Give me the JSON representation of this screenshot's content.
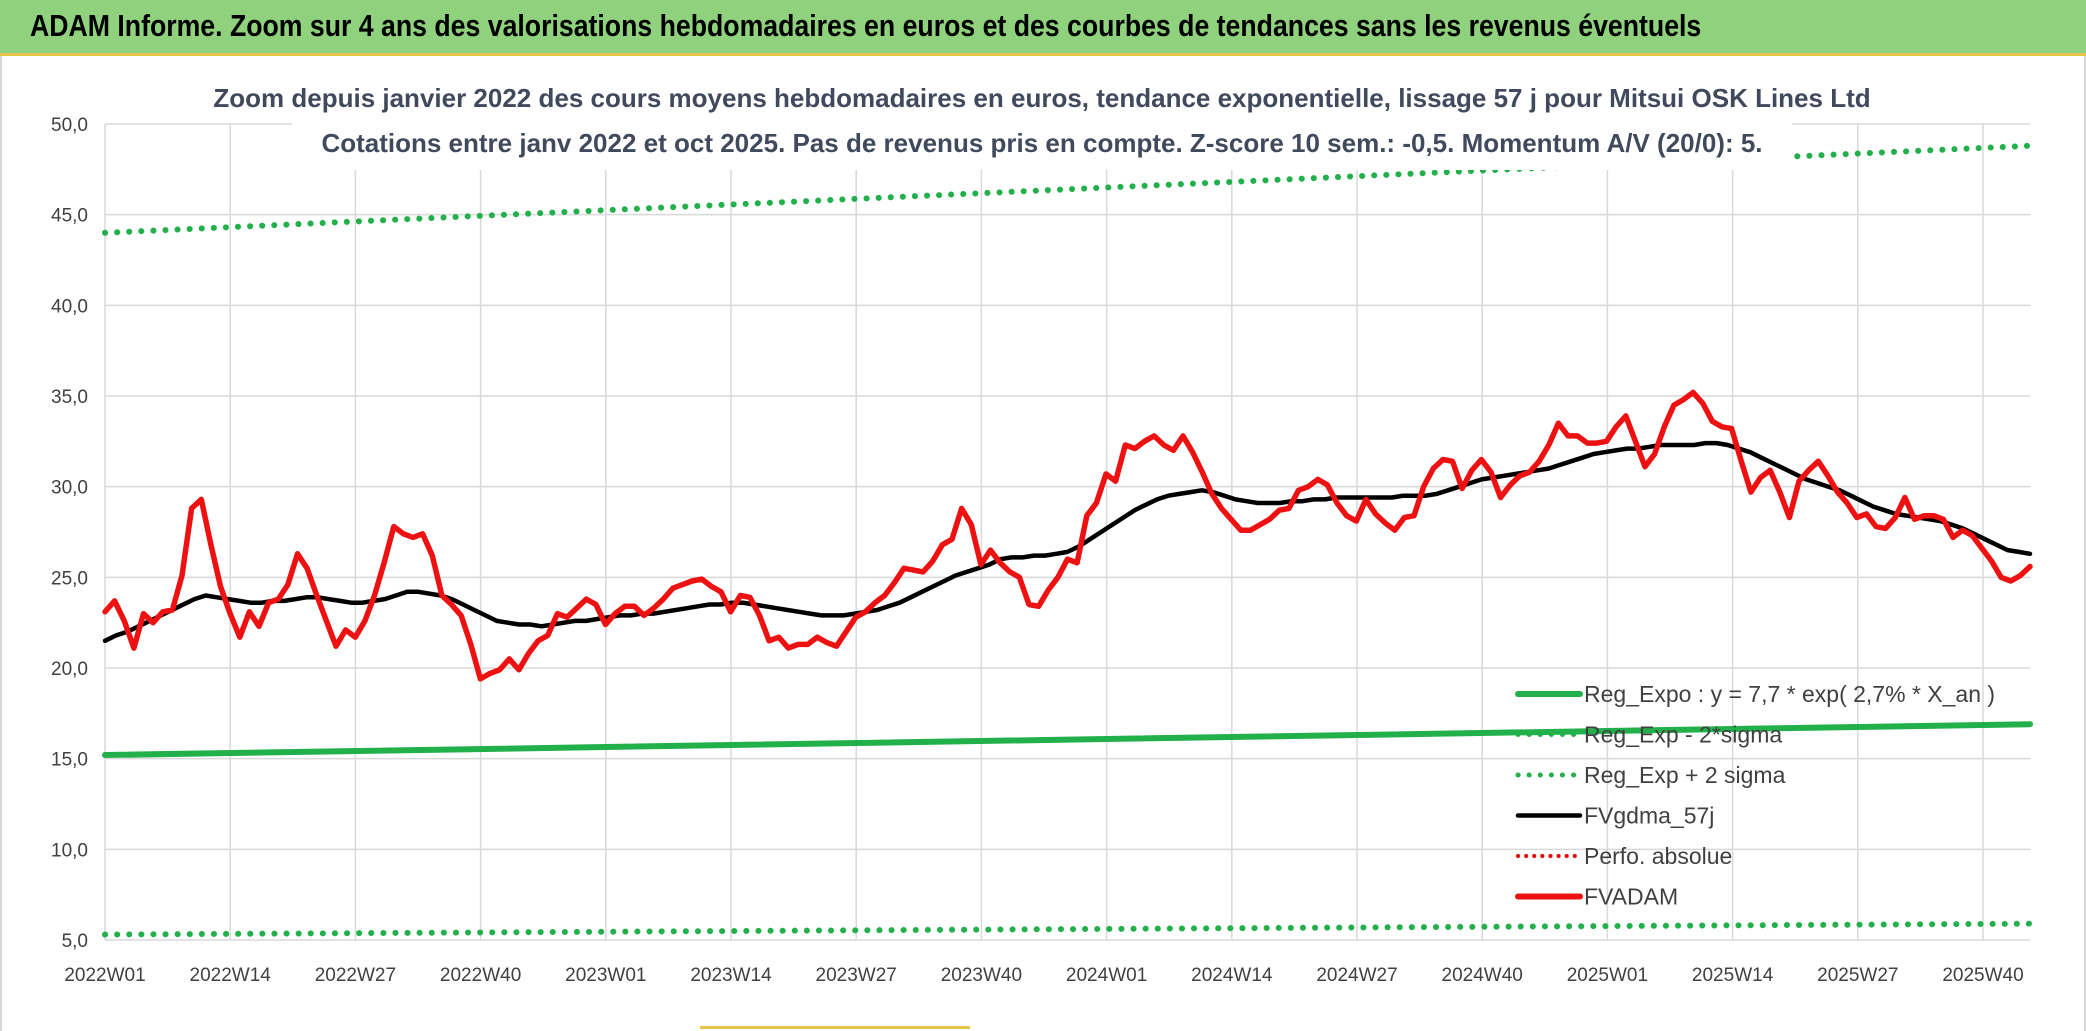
{
  "banner": {
    "title": "ADAM Informe. Zoom sur 4 ans des valorisations hebdomadaires en euros et des courbes de tendances sans les revenus éventuels"
  },
  "colors": {
    "reg_expo": "#22b04a",
    "sigma": "#22b04a",
    "fvgdma": "#000000",
    "perfo": "#e00000",
    "fvadam": "#ee1111",
    "banner": "#8fd17c"
  },
  "chart_data": {
    "type": "line",
    "title_line1": "Zoom depuis janvier 2022 des cours moyens hebdomadaires en euros, tendance exponentielle, lissage 57 j pour Mitsui OSK Lines Ltd",
    "title_line2": "Cotations entre janv 2022 et oct 2025. Pas de revenus pris en compte. Z-score 10 sem.: -0,5. Momentum A/V (20/0): 5.",
    "ylim": [
      5,
      50
    ],
    "yticks": [
      "5,0",
      "10,0",
      "15,0",
      "20,0",
      "25,0",
      "30,0",
      "35,0",
      "40,0",
      "45,0",
      "50,0"
    ],
    "xticks": [
      "2022W01",
      "2022W14",
      "2022W27",
      "2022W40",
      "2023W01",
      "2023W14",
      "2023W27",
      "2023W40",
      "2024W01",
      "2024W14",
      "2024W27",
      "2024W40",
      "2025W01",
      "2025W14",
      "2025W27",
      "2025W40"
    ],
    "legend": [
      {
        "name": "Reg_Expo : y = 7,7 * exp( 2,7% *  X_an )",
        "key": "reg_expo",
        "style": "solid"
      },
      {
        "name": "Reg_Exp - 2*sigma",
        "key": "sigma_low",
        "style": "dotted"
      },
      {
        "name": "Reg_Exp + 2 sigma",
        "key": "sigma_high",
        "style": "dotted"
      },
      {
        "name": "FVgdma_57j",
        "key": "fvgdma",
        "style": "solid"
      },
      {
        "name": "Perfo. absolue",
        "key": "perfo",
        "style": "dotted"
      },
      {
        "name": "FVADAM",
        "key": "fvadam",
        "style": "solid"
      }
    ],
    "series": [
      {
        "name": "Reg_Expo",
        "start": 15.2,
        "end": 16.9
      },
      {
        "name": "Reg_Exp - 2*sigma",
        "start": 5.3,
        "end": 5.9
      },
      {
        "name": "Reg_Exp + 2 sigma",
        "start": 44.0,
        "end": 48.8
      },
      {
        "name": "FVgdma_57j",
        "values": [
          21.5,
          21.8,
          22.0,
          22.3,
          22.6,
          22.9,
          23.2,
          23.5,
          23.8,
          24.0,
          23.9,
          23.8,
          23.7,
          23.6,
          23.6,
          23.7,
          23.7,
          23.8,
          23.9,
          23.9,
          23.8,
          23.7,
          23.6,
          23.6,
          23.7,
          23.8,
          24.0,
          24.2,
          24.2,
          24.1,
          24.0,
          23.8,
          23.5,
          23.2,
          22.9,
          22.6,
          22.5,
          22.4,
          22.4,
          22.3,
          22.4,
          22.5,
          22.6,
          22.6,
          22.7,
          22.8,
          22.9,
          22.9,
          23.0,
          23.0,
          23.1,
          23.2,
          23.3,
          23.4,
          23.5,
          23.5,
          23.6,
          23.6,
          23.5,
          23.4,
          23.3,
          23.2,
          23.1,
          23.0,
          22.9,
          22.9,
          22.9,
          23.0,
          23.1,
          23.2,
          23.4,
          23.6,
          23.9,
          24.2,
          24.5,
          24.8,
          25.1,
          25.3,
          25.5,
          25.7,
          26.0,
          26.1,
          26.1,
          26.2,
          26.2,
          26.3,
          26.4,
          26.7,
          27.1,
          27.5,
          27.9,
          28.3,
          28.7,
          29.0,
          29.3,
          29.5,
          29.6,
          29.7,
          29.8,
          29.7,
          29.5,
          29.3,
          29.2,
          29.1,
          29.1,
          29.1,
          29.2,
          29.2,
          29.3,
          29.3,
          29.4,
          29.4,
          29.4,
          29.4,
          29.4,
          29.4,
          29.5,
          29.5,
          29.5,
          29.6,
          29.8,
          30.0,
          30.2,
          30.4,
          30.5,
          30.6,
          30.7,
          30.8,
          30.9,
          31.0,
          31.2,
          31.4,
          31.6,
          31.8,
          31.9,
          32.0,
          32.1,
          32.1,
          32.2,
          32.3,
          32.3,
          32.3,
          32.3,
          32.4,
          32.4,
          32.3,
          32.1,
          31.9,
          31.6,
          31.3,
          31.0,
          30.7,
          30.4,
          30.2,
          30.0,
          29.8,
          29.5,
          29.2,
          28.9,
          28.7,
          28.5,
          28.4,
          28.3,
          28.2,
          28.1,
          27.9,
          27.7,
          27.4,
          27.1,
          26.8,
          26.5,
          26.4,
          26.3
        ]
      },
      {
        "name": "FVADAM",
        "values": [
          23.1,
          23.7,
          22.6,
          21.1,
          23.0,
          22.5,
          23.1,
          23.2,
          25.1,
          28.8,
          29.3,
          26.8,
          24.5,
          23.0,
          21.7,
          23.1,
          22.3,
          23.6,
          23.8,
          24.6,
          26.3,
          25.5,
          24.0,
          22.6,
          21.2,
          22.1,
          21.7,
          22.6,
          24.0,
          25.8,
          27.8,
          27.4,
          27.2,
          27.4,
          26.2,
          24.0,
          23.5,
          22.9,
          21.3,
          19.4,
          19.7,
          19.9,
          20.5,
          19.9,
          20.8,
          21.5,
          21.8,
          23.0,
          22.8,
          23.3,
          23.8,
          23.5,
          22.4,
          23.0,
          23.4,
          23.4,
          22.9,
          23.3,
          23.8,
          24.4,
          24.6,
          24.8,
          24.9,
          24.5,
          24.2,
          23.1,
          24.0,
          23.9,
          22.9,
          21.5,
          21.7,
          21.1,
          21.3,
          21.3,
          21.7,
          21.4,
          21.2,
          22.0,
          22.8,
          23.1,
          23.6,
          24.0,
          24.7,
          25.5,
          25.4,
          25.3,
          25.9,
          26.8,
          27.1,
          28.8,
          27.9,
          25.7,
          26.5,
          25.8,
          25.3,
          25.0,
          23.5,
          23.4,
          24.3,
          25.0,
          26.0,
          25.8,
          28.4,
          29.1,
          30.7,
          30.3,
          32.3,
          32.1,
          32.5,
          32.8,
          32.3,
          32.0,
          32.8,
          31.9,
          30.8,
          29.6,
          28.8,
          28.2,
          27.6,
          27.6,
          27.9,
          28.2,
          28.7,
          28.8,
          29.8,
          30.0,
          30.4,
          30.1,
          29.1,
          28.4,
          28.1,
          29.3,
          28.5,
          28.0,
          27.6,
          28.3,
          28.4,
          30.0,
          31.0,
          31.5,
          31.4,
          29.9,
          30.9,
          31.5,
          30.8,
          29.4,
          30.1,
          30.6,
          30.8,
          31.4,
          32.3,
          33.5,
          32.8,
          32.8,
          32.4,
          32.4,
          32.5,
          33.3,
          33.9,
          32.5,
          31.1,
          31.8,
          33.3,
          34.5,
          34.8,
          35.2,
          34.6,
          33.6,
          33.3,
          33.2,
          31.4,
          29.7,
          30.5,
          30.9,
          29.7,
          28.3,
          30.3,
          30.9,
          31.4,
          30.6,
          29.7,
          29.1,
          28.3,
          28.5,
          27.8,
          27.7,
          28.3,
          29.4,
          28.2,
          28.4,
          28.4,
          28.2,
          27.2,
          27.6,
          27.3,
          26.6,
          25.9,
          25.0,
          24.8,
          25.1,
          25.6
        ]
      }
    ]
  }
}
